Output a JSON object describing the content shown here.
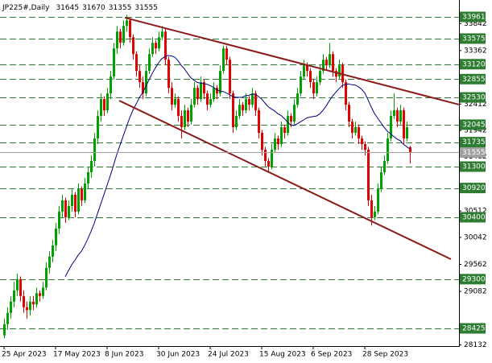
{
  "chart_data": {
    "type": "candlestick",
    "title": "JP225#,Daily",
    "ylim": [
      28110,
      34261
    ],
    "xlim": [
      -1.25,
      141.25
    ],
    "yticks": [
      33842,
      33362,
      32412,
      31942,
      31482,
      30512,
      30042,
      29562,
      29082,
      28132
    ],
    "xticks": [
      {
        "value": 0,
        "label": "25 Apr 2023"
      },
      {
        "value": 16,
        "label": "17 May 2023"
      },
      {
        "value": 32,
        "label": "8 Jun 2023"
      },
      {
        "value": 48,
        "label": "30 Jun 2023"
      },
      {
        "value": 64,
        "label": "24 Jul 2023"
      },
      {
        "value": 80,
        "label": "15 Aug 2023"
      },
      {
        "value": 96,
        "label": "6 Sep 2023"
      },
      {
        "value": 112,
        "label": "28 Sep 2023"
      }
    ],
    "up_color": "#00a000",
    "down_color": "#e00000",
    "level_color": "#2e7d32",
    "trend_color": "#8b1a1a",
    "ma_color": "#000080",
    "ma_period": 20,
    "levels": [
      33961,
      33575,
      33120,
      32855,
      32530,
      32045,
      31735,
      31300,
      30920,
      30400,
      29300,
      28425
    ],
    "trendlines": [
      {
        "x": [
          37.5,
          141.25
        ],
        "y": [
          33947,
          32402
        ]
      },
      {
        "x": [
          35.75,
          138.75
        ],
        "y": [
          32473,
          29655
        ]
      }
    ],
    "candles": [
      [
        28300,
        28600,
        28250,
        28500
      ],
      [
        28500,
        28800,
        28400,
        28700
      ],
      [
        28700,
        29000,
        28600,
        28900
      ],
      [
        28900,
        29250,
        28800,
        29100
      ],
      [
        29100,
        29400,
        29000,
        29300
      ],
      [
        29300,
        29350,
        28900,
        29000
      ],
      [
        29000,
        29100,
        28700,
        28800
      ],
      [
        28800,
        28900,
        28600,
        28750
      ],
      [
        28750,
        29000,
        28650,
        28900
      ],
      [
        28900,
        29000,
        28750,
        28850
      ],
      [
        28850,
        29150,
        28800,
        29050
      ],
      [
        29050,
        29100,
        28900,
        29000
      ],
      [
        29000,
        29250,
        28950,
        29150
      ],
      [
        29150,
        29600,
        29100,
        29500
      ],
      [
        29500,
        29800,
        29400,
        29700
      ],
      [
        29700,
        30000,
        29600,
        29900
      ],
      [
        29900,
        30300,
        29800,
        30200
      ],
      [
        30200,
        30600,
        30100,
        30500
      ],
      [
        30500,
        30800,
        30400,
        30700
      ],
      [
        30700,
        30750,
        30300,
        30400
      ],
      [
        30400,
        30700,
        30350,
        30600
      ],
      [
        30600,
        30900,
        30500,
        30800
      ],
      [
        30800,
        30850,
        30400,
        30500
      ],
      [
        30500,
        31000,
        30450,
        30900
      ],
      [
        30900,
        30950,
        30600,
        30700
      ],
      [
        30700,
        31100,
        30650,
        31000
      ],
      [
        31000,
        31300,
        30900,
        31200
      ],
      [
        31200,
        31500,
        31100,
        31400
      ],
      [
        31400,
        31900,
        31300,
        31800
      ],
      [
        31800,
        32300,
        31700,
        32200
      ],
      [
        32200,
        32600,
        32100,
        32500
      ],
      [
        32500,
        32550,
        32200,
        32300
      ],
      [
        32300,
        32700,
        32250,
        32600
      ],
      [
        32600,
        33000,
        32500,
        32900
      ],
      [
        32900,
        33500,
        32850,
        33400
      ],
      [
        33400,
        33800,
        33300,
        33700
      ],
      [
        33700,
        33750,
        33400,
        33500
      ],
      [
        33500,
        33900,
        33450,
        33800
      ],
      [
        33800,
        34000,
        33700,
        33900
      ],
      [
        33900,
        33950,
        33500,
        33600
      ],
      [
        33600,
        33650,
        33200,
        33300
      ],
      [
        33300,
        33350,
        32900,
        33000
      ],
      [
        33000,
        33100,
        32700,
        32800
      ],
      [
        32800,
        32900,
        32500,
        32600
      ],
      [
        32600,
        33100,
        32550,
        33000
      ],
      [
        33000,
        33400,
        32950,
        33300
      ],
      [
        33300,
        33600,
        33250,
        33500
      ],
      [
        33500,
        33550,
        33300,
        33400
      ],
      [
        33400,
        33700,
        33350,
        33600
      ],
      [
        33600,
        33800,
        33550,
        33700
      ],
      [
        33700,
        33750,
        33100,
        33200
      ],
      [
        33200,
        33250,
        32600,
        32700
      ],
      [
        32700,
        32800,
        32300,
        32400
      ],
      [
        32400,
        32600,
        32350,
        32500
      ],
      [
        32500,
        32550,
        32100,
        32200
      ],
      [
        32200,
        32300,
        31800,
        32000
      ],
      [
        32000,
        32400,
        31950,
        32300
      ],
      [
        32300,
        32350,
        32000,
        32100
      ],
      [
        32100,
        32500,
        32050,
        32400
      ],
      [
        32400,
        32800,
        32350,
        32700
      ],
      [
        32700,
        32750,
        32400,
        32500
      ],
      [
        32500,
        32900,
        32450,
        32800
      ],
      [
        32800,
        32850,
        32500,
        32600
      ],
      [
        32600,
        32650,
        32300,
        32400
      ],
      [
        32400,
        32600,
        32350,
        32500
      ],
      [
        32500,
        32800,
        32450,
        32700
      ],
      [
        32700,
        32750,
        32500,
        32600
      ],
      [
        32600,
        33100,
        32550,
        33000
      ],
      [
        33000,
        33450,
        32950,
        33400
      ],
      [
        33400,
        33450,
        33100,
        33200
      ],
      [
        33200,
        33250,
        32500,
        32600
      ],
      [
        32600,
        32650,
        31900,
        32000
      ],
      [
        32000,
        32300,
        31950,
        32200
      ],
      [
        32200,
        32500,
        32150,
        32400
      ],
      [
        32400,
        32450,
        32200,
        32300
      ],
      [
        32300,
        32600,
        32250,
        32500
      ],
      [
        32500,
        32550,
        32300,
        32400
      ],
      [
        32400,
        32700,
        32350,
        32600
      ],
      [
        32600,
        32650,
        32200,
        32300
      ],
      [
        32300,
        32350,
        31800,
        31900
      ],
      [
        31900,
        31950,
        31500,
        31600
      ],
      [
        31600,
        31650,
        31300,
        31400
      ],
      [
        31400,
        31450,
        31200,
        31300
      ],
      [
        31300,
        31700,
        31250,
        31600
      ],
      [
        31600,
        31900,
        31550,
        31800
      ],
      [
        31800,
        31850,
        31600,
        31700
      ],
      [
        31700,
        32100,
        31650,
        32000
      ],
      [
        32000,
        32050,
        31800,
        31900
      ],
      [
        31900,
        32300,
        31850,
        32200
      ],
      [
        32200,
        32250,
        32000,
        32100
      ],
      [
        32100,
        32500,
        32050,
        32400
      ],
      [
        32400,
        32700,
        32350,
        32600
      ],
      [
        32600,
        33000,
        32550,
        32900
      ],
      [
        32900,
        33200,
        32850,
        33100
      ],
      [
        33100,
        33150,
        32900,
        33000
      ],
      [
        33000,
        33050,
        32700,
        32800
      ],
      [
        32800,
        32850,
        32500,
        32600
      ],
      [
        32600,
        32900,
        32550,
        32800
      ],
      [
        32800,
        33100,
        32750,
        33000
      ],
      [
        33000,
        33300,
        32950,
        33200
      ],
      [
        33200,
        33250,
        33000,
        33100
      ],
      [
        33100,
        33500,
        33050,
        33300
      ],
      [
        33300,
        33350,
        32900,
        33000
      ],
      [
        33000,
        33050,
        32800,
        32900
      ],
      [
        32900,
        33200,
        32850,
        33100
      ],
      [
        33100,
        33150,
        32700,
        32800
      ],
      [
        32800,
        32850,
        32300,
        32400
      ],
      [
        32400,
        32450,
        32000,
        32100
      ],
      [
        32100,
        32150,
        31800,
        31900
      ],
      [
        31900,
        32100,
        31850,
        32000
      ],
      [
        32000,
        32050,
        31700,
        31800
      ],
      [
        31800,
        31850,
        31600,
        31700
      ],
      [
        31700,
        31750,
        31500,
        31600
      ],
      [
        31600,
        31650,
        30600,
        30700
      ],
      [
        30700,
        30800,
        30250,
        30400
      ],
      [
        30400,
        30600,
        30350,
        30500
      ],
      [
        30500,
        31000,
        30450,
        30900
      ],
      [
        30900,
        31300,
        30850,
        31200
      ],
      [
        31200,
        31500,
        31150,
        31400
      ],
      [
        31400,
        31900,
        31350,
        31800
      ],
      [
        31800,
        32300,
        31750,
        32200
      ],
      [
        32200,
        32600,
        32150,
        32300
      ],
      [
        32300,
        32350,
        32000,
        32100
      ],
      [
        32100,
        32400,
        32050,
        32300
      ],
      [
        32300,
        32350,
        31700,
        31800
      ],
      [
        31800,
        32100,
        31750,
        32000
      ],
      [
        31645,
        31670,
        31355,
        31555
      ]
    ]
  }
}
